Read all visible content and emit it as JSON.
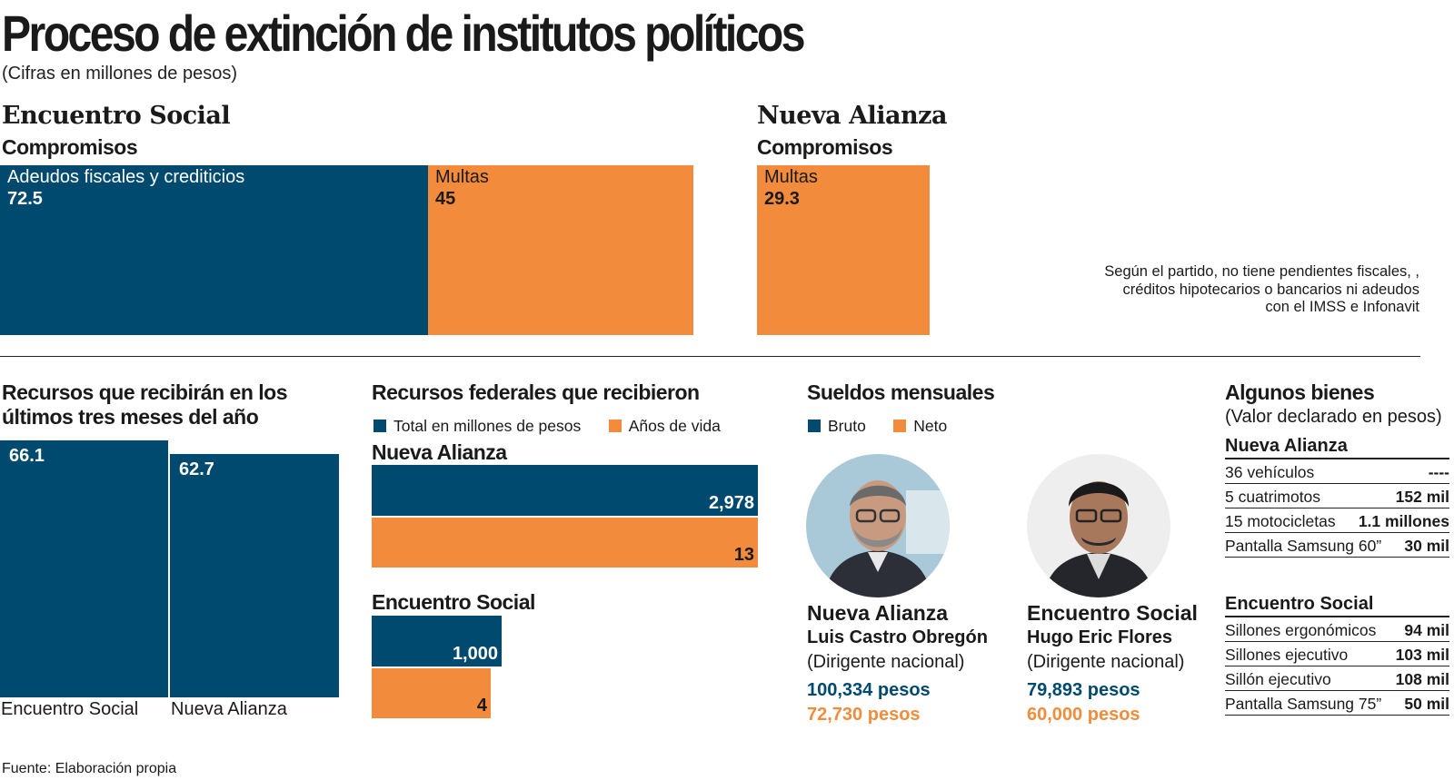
{
  "title": "Proceso de extinción de institutos políticos",
  "subtitle": "(Cifras en millones de pesos)",
  "colors": {
    "bruto_total": "#004a6f",
    "neto_anios": "#f28c3c"
  },
  "compromisos": {
    "encuentro_social": {
      "party": "Encuentro Social",
      "heading": "Compromisos",
      "items": [
        {
          "label": "Adeudos fiscales y crediticios",
          "value": "72.5"
        },
        {
          "label": "Multas",
          "value": "45"
        }
      ]
    },
    "nueva_alianza": {
      "party": "Nueva Alianza",
      "heading": "Compromisos",
      "items": [
        {
          "label": "Multas",
          "value": "29.3"
        }
      ],
      "note": [
        "Según el partido, no tiene pendientes fiscales, ,",
        "créditos hipotecarios o bancarios ni adeudos",
        "con el IMSS e Infonavit"
      ]
    }
  },
  "chart_data": [
    {
      "type": "bar",
      "title": "Compromisos",
      "categories": [
        "Encuentro Social - Adeudos fiscales y crediticios",
        "Encuentro Social - Multas",
        "Nueva Alianza - Multas"
      ],
      "values": [
        72.5,
        45,
        29.3
      ]
    },
    {
      "type": "bar",
      "title": "Recursos que recibirán en los últimos tres meses del año",
      "categories": [
        "Encuentro Social",
        "Nueva Alianza"
      ],
      "values": [
        66.1,
        62.7
      ]
    },
    {
      "type": "bar",
      "title": "Recursos federales que recibieron",
      "categories": [
        "Nueva Alianza",
        "Encuentro Social"
      ],
      "series": [
        {
          "name": "Total en millones de pesos",
          "values": [
            2978,
            1000
          ]
        },
        {
          "name": "Años de vida",
          "values": [
            13,
            4
          ]
        }
      ]
    }
  ],
  "recursos": {
    "title_line1": "Recursos que recibirán en los",
    "title_line2": "últimos tres meses del año",
    "bars": [
      {
        "label": "Encuentro Social",
        "value": "66.1"
      },
      {
        "label": "Nueva Alianza",
        "value": "62.7"
      }
    ]
  },
  "federales": {
    "title": "Recursos federales que recibieron",
    "legend": [
      "Total en millones de pesos",
      "Años de vida"
    ],
    "groups": [
      {
        "party": "Nueva Alianza",
        "total": "2,978",
        "anios": "13"
      },
      {
        "party": "Encuentro Social",
        "total": "1,000",
        "anios": "4"
      }
    ]
  },
  "sueldos": {
    "title": "Sueldos mensuales",
    "legend": [
      "Bruto",
      "Neto"
    ],
    "people": [
      {
        "party": "Nueva Alianza",
        "name": "Luis Castro Obregón",
        "role": "(Dirigente nacional)",
        "bruto": "100,334 pesos",
        "neto": "72,730 pesos"
      },
      {
        "party": "Encuentro Social",
        "name": "Hugo Eric Flores",
        "role": "(Dirigente nacional)",
        "bruto": "79,893 pesos",
        "neto": "60,000 pesos"
      }
    ]
  },
  "bienes": {
    "title": "Algunos bienes",
    "subtitle": "(Valor declarado en pesos)",
    "groups": [
      {
        "party": "Nueva Alianza",
        "items": [
          {
            "label": "36 vehículos",
            "value": "----"
          },
          {
            "label": "5 cuatrimotos",
            "value": "152 mil"
          },
          {
            "label": "15 motocicletas",
            "value": "1.1 millones"
          },
          {
            "label": "Pantalla Samsung 60”",
            "value": "30 mil"
          }
        ]
      },
      {
        "party": "Encuentro Social",
        "items": [
          {
            "label": "Sillones ergonómicos",
            "value": "94 mil"
          },
          {
            "label": "Sillones ejecutivo",
            "value": "103 mil"
          },
          {
            "label": "Sillón ejecutivo",
            "value": "108 mil"
          },
          {
            "label": "Pantalla Samsung 75”",
            "value": "50 mil"
          }
        ]
      }
    ]
  },
  "source": "Fuente: Elaboración propia"
}
